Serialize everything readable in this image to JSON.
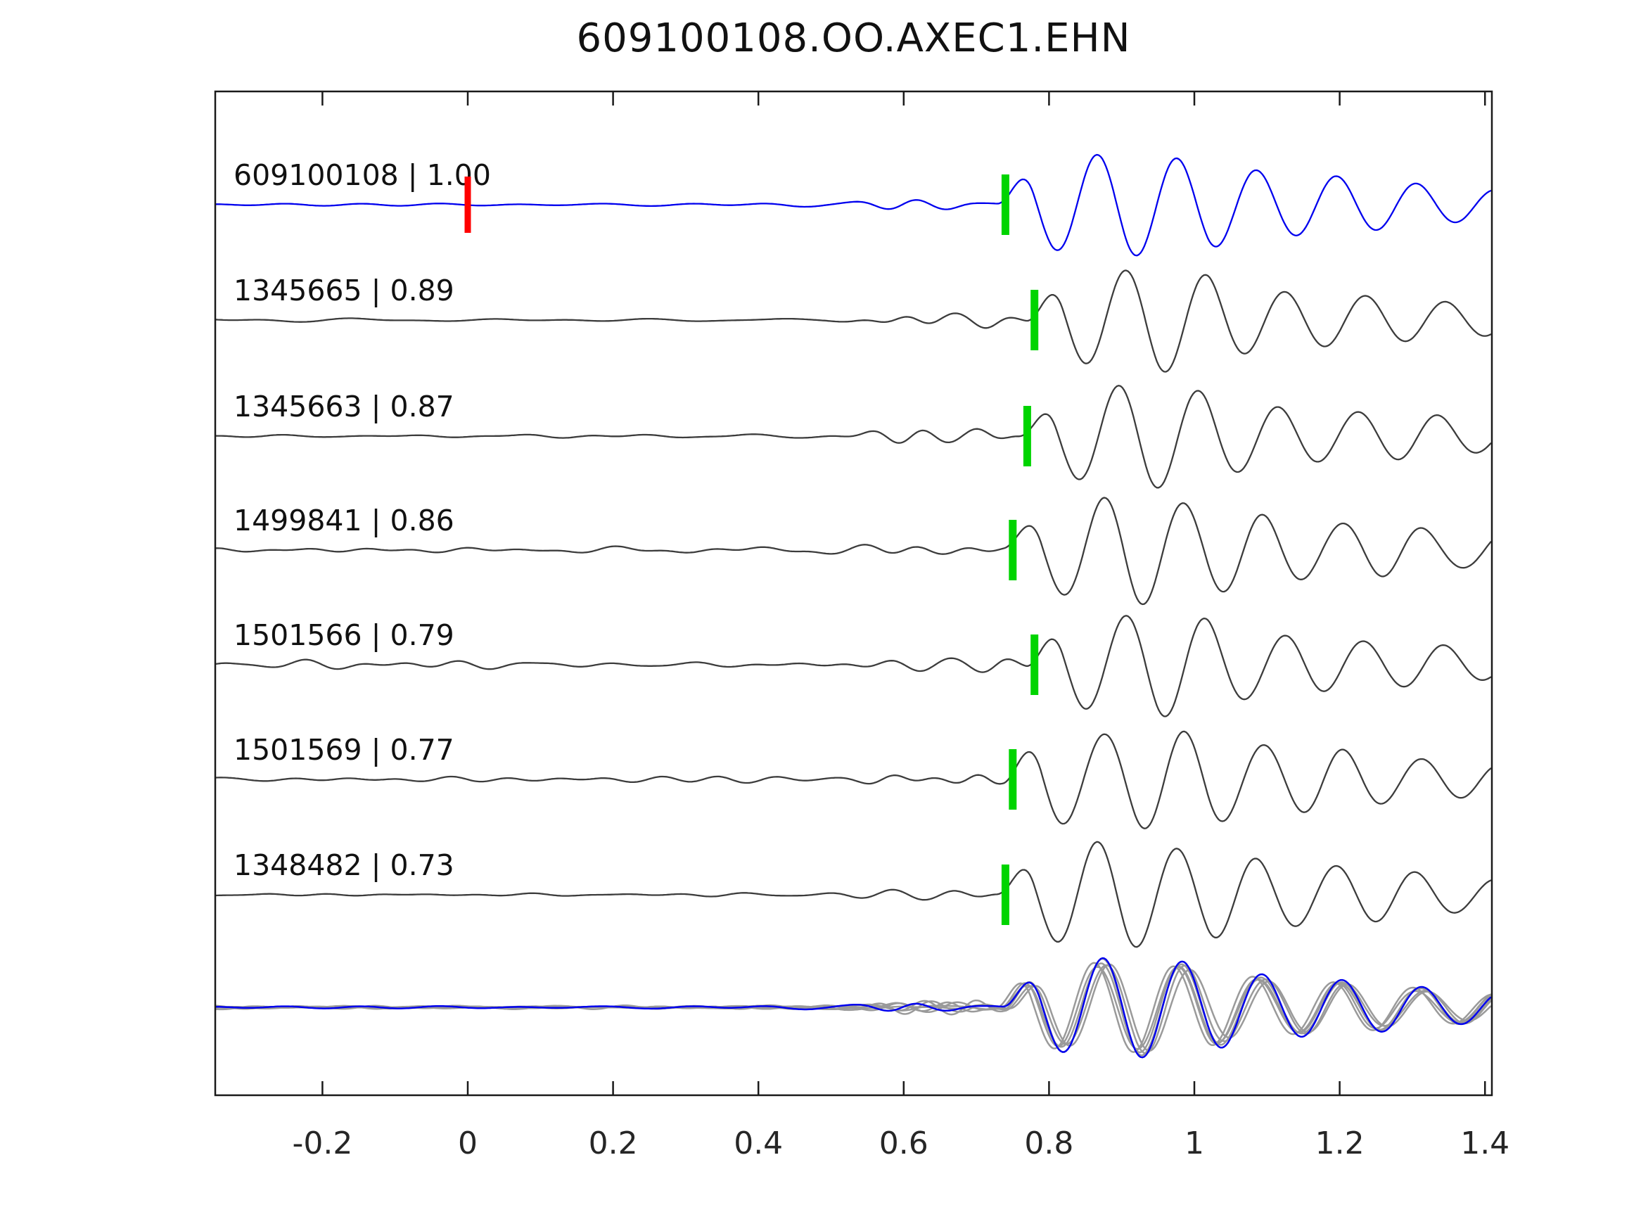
{
  "title": "609100108.OO.AXEC1.EHN",
  "chart_data": {
    "type": "line",
    "title": "609100108.OO.AXEC1.EHN",
    "subtitle": "",
    "xlabel": "",
    "ylabel": "",
    "xlim": [
      -0.3475,
      1.4095
    ],
    "xticks": [
      -0.2,
      0,
      0.2,
      0.4,
      0.6,
      0.8,
      1,
      1.2,
      1.4
    ],
    "xtick_labels": [
      "-0.2",
      "0",
      "0.2",
      "0.4",
      "0.6",
      "0.8",
      "1",
      "1.2",
      "1.4"
    ],
    "grid": false,
    "legend": "none",
    "description": "Stacked normalized seismic waveforms: template event (blue, top) and six matched detections (dark gray) with green pick markers near t=0.75 s; red marker at t=0 on template row; bottom row overlays all detections (gray) with the template (blue).",
    "colors": {
      "template": "#0000ee",
      "detection": "#3c3c3c",
      "overlay_gray": "#9a9a9a",
      "overlay_template": "#0000ee",
      "pick_green": "#00d400",
      "zero_red": "#ff0000",
      "axis": "#1a1a1a",
      "text": "#111111"
    },
    "traces": [
      {
        "label": "609100108 | 1.00",
        "id": "609100108",
        "correlation": 1.0,
        "role": "template",
        "pick_time": 0.74,
        "zero_marker": 0,
        "seed": 11,
        "noise": 2.0,
        "noise_profile": "flat",
        "pre": 9,
        "amp": 73
      },
      {
        "label": "1345665 | 0.89",
        "id": "1345665",
        "correlation": 0.89,
        "role": "detection",
        "pick_time": 0.78,
        "seed": 23,
        "noise": 2.6,
        "noise_profile": "flat",
        "pre": 10,
        "amp": 74
      },
      {
        "label": "1345663 | 0.87",
        "id": "1345663",
        "correlation": 0.87,
        "role": "detection",
        "pick_time": 0.77,
        "seed": 37,
        "noise": 2.8,
        "noise_profile": "flat",
        "pre": 10,
        "amp": 72
      },
      {
        "label": "1499841 | 0.86",
        "id": "1499841",
        "correlation": 0.86,
        "role": "detection",
        "pick_time": 0.75,
        "seed": 51,
        "noise": 4.5,
        "noise_profile": "flat",
        "pre": 9,
        "amp": 74
      },
      {
        "label": "1501566 | 0.79",
        "id": "1501566",
        "correlation": 0.79,
        "role": "detection",
        "pick_time": 0.78,
        "seed": 67,
        "noise": 10.0,
        "noise_profile": "decay",
        "pre": 9,
        "amp": 72
      },
      {
        "label": "1501569 | 0.77",
        "id": "1501569",
        "correlation": 0.77,
        "role": "detection",
        "pick_time": 0.75,
        "seed": 83,
        "noise": 5.5,
        "noise_profile": "flat",
        "pre": 9,
        "amp": 74
      },
      {
        "label": "1348482 | 0.73",
        "id": "1348482",
        "correlation": 0.73,
        "role": "detection",
        "pick_time": 0.74,
        "seed": 97,
        "noise": 2.2,
        "noise_profile": "flat",
        "pre": 8,
        "amp": 76
      }
    ],
    "overlay": {
      "members": 6,
      "pick_align": 0.748,
      "amp": 68,
      "noise": 2.5,
      "seeds": [
        201,
        211,
        223,
        233,
        241,
        251
      ],
      "time_jitter": [
        -0.012,
        -0.006,
        0.0,
        0.005,
        0.01,
        -0.003
      ]
    },
    "markers": {
      "green_width": 11,
      "green_height": 86,
      "red_width": 9,
      "red_height": 80
    }
  }
}
